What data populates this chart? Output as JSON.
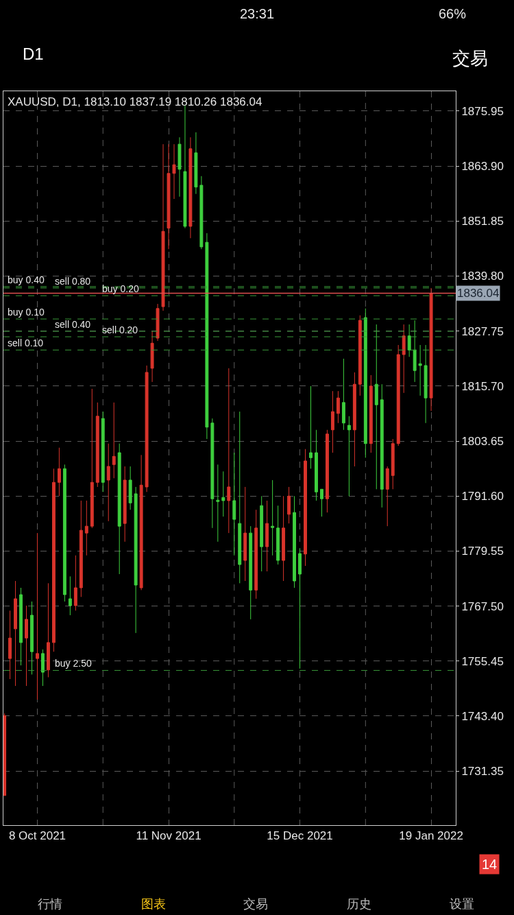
{
  "chart_data": {
    "type": "candlestick",
    "title": "XAUUSD, D1, 1813.10 1837.19 1810.26 1836.04",
    "categories": [
      null,
      null,
      null,
      null,
      null,
      null,
      "8 Oct 2021",
      null,
      null,
      null,
      null,
      null,
      null,
      null,
      null,
      null,
      null,
      null,
      null,
      null,
      null,
      null,
      null,
      null,
      null,
      null,
      null,
      null,
      null,
      null,
      "11 Nov 2021",
      null,
      null,
      null,
      null,
      null,
      null,
      null,
      null,
      null,
      null,
      null,
      null,
      null,
      null,
      null,
      null,
      null,
      null,
      null,
      null,
      null,
      null,
      null,
      "15 Dec 2021",
      null,
      null,
      null,
      null,
      null,
      null,
      null,
      null,
      null,
      null,
      null,
      null,
      null,
      null,
      null,
      null,
      null,
      null,
      null,
      null,
      null,
      null,
      null,
      "19 Jan 2022"
    ],
    "ohlc": [
      [
        1726.0,
        1744.0,
        1725.9,
        1743.5
      ],
      [
        1756.0,
        1766.5,
        1751.5,
        1760.5
      ],
      [
        1762.5,
        1773.0,
        1750.0,
        1769.1
      ],
      [
        1770.0,
        1771.5,
        1754.5,
        1759.5
      ],
      [
        1760.5,
        1767.6,
        1750.0,
        1764.6
      ],
      [
        1765.5,
        1768.5,
        1752.5,
        1757.5
      ],
      [
        1756.0,
        1783.5,
        1747.0,
        1757.1
      ],
      [
        1757.1,
        1758.0,
        1750.0,
        1753.0
      ],
      [
        1753.5,
        1772.5,
        1751.9,
        1759.5
      ],
      [
        1759.5,
        1797.6,
        1757.5,
        1794.6
      ],
      [
        1794.6,
        1802.2,
        1791.6,
        1797.6
      ],
      [
        1797.6,
        1798.5,
        1768.5,
        1770.0
      ],
      [
        1769.1,
        1774.0,
        1765.5,
        1767.6
      ],
      [
        1767.6,
        1778.6,
        1766.5,
        1771.5
      ],
      [
        1771.5,
        1790.6,
        1769.5,
        1784.1
      ],
      [
        1783.5,
        1790.6,
        1778.6,
        1785.0
      ],
      [
        1785.0,
        1815.1,
        1784.6,
        1794.6
      ],
      [
        1794.6,
        1812.1,
        1793.6,
        1809.1
      ],
      [
        1808.6,
        1810.1,
        1792.5,
        1794.6
      ],
      [
        1795.1,
        1803.1,
        1786.1,
        1798.1
      ],
      [
        1798.5,
        1812.1,
        1795.5,
        1800.3
      ],
      [
        1801.1,
        1803.1,
        1774.5,
        1785.0
      ],
      [
        1785.6,
        1798.1,
        1781.6,
        1795.1
      ],
      [
        1795.1,
        1798.1,
        1788.6,
        1790.1
      ],
      [
        1792.1,
        1793.6,
        1761.6,
        1772.1
      ],
      [
        1771.5,
        1800.6,
        1771.0,
        1794.0
      ],
      [
        1793.6,
        1820.2,
        1792.5,
        1818.7
      ],
      [
        1819.6,
        1827.7,
        1816.6,
        1825.1
      ],
      [
        1826.2,
        1833.7,
        1825.6,
        1832.7
      ],
      [
        1833.1,
        1868.7,
        1832.2,
        1849.6
      ],
      [
        1850.3,
        1868.7,
        1845.7,
        1862.3
      ],
      [
        1862.3,
        1868.7,
        1856.7,
        1864.2
      ],
      [
        1868.7,
        1870.2,
        1857.2,
        1863.2
      ],
      [
        1862.7,
        1877.3,
        1850.3,
        1850.7
      ],
      [
        1850.7,
        1870.2,
        1848.1,
        1867.7
      ],
      [
        1866.8,
        1871.3,
        1857.8,
        1859.3
      ],
      [
        1859.7,
        1861.7,
        1845.7,
        1846.2
      ],
      [
        1847.2,
        1849.2,
        1804.1,
        1806.7
      ],
      [
        1807.6,
        1808.6,
        1784.6,
        1791.0
      ],
      [
        1790.7,
        1798.5,
        1781.6,
        1790.4
      ],
      [
        1791.3,
        1797.0,
        1787.1,
        1790.6
      ],
      [
        1790.6,
        1819.6,
        1783.5,
        1793.6
      ],
      [
        1790.6,
        1801.1,
        1778.6,
        1786.5
      ],
      [
        1785.6,
        1810.1,
        1772.5,
        1776.6
      ],
      [
        1777.5,
        1793.6,
        1773.0,
        1783.5
      ],
      [
        1783.5,
        1785.0,
        1764.6,
        1771.0
      ],
      [
        1771.0,
        1788.6,
        1769.1,
        1784.6
      ],
      [
        1789.5,
        1791.6,
        1775.1,
        1780.5
      ],
      [
        1780.5,
        1790.6,
        1775.1,
        1785.6
      ],
      [
        1785.0,
        1795.1,
        1778.6,
        1784.7
      ],
      [
        1784.6,
        1789.5,
        1776.6,
        1777.5
      ],
      [
        1777.5,
        1791.6,
        1773.0,
        1784.6
      ],
      [
        1787.6,
        1793.6,
        1785.6,
        1791.6
      ],
      [
        1788.0,
        1791.6,
        1771.5,
        1773.0
      ],
      [
        1779.0,
        1780.1,
        1753.8,
        1774.5
      ],
      [
        1778.9,
        1801.9,
        1776.3,
        1799.3
      ],
      [
        1801.1,
        1815.7,
        1797.6,
        1800.0
      ],
      [
        1801.1,
        1806.1,
        1790.6,
        1792.5
      ],
      [
        1793.1,
        1793.1,
        1787.1,
        1791.0
      ],
      [
        1791.0,
        1806.1,
        1788.0,
        1805.2
      ],
      [
        1806.1,
        1814.6,
        1801.1,
        1810.1
      ],
      [
        1809.7,
        1814.6,
        1807.6,
        1813.1
      ],
      [
        1812.1,
        1821.7,
        1806.1,
        1807.6
      ],
      [
        1807.1,
        1809.1,
        1791.6,
        1806.1
      ],
      [
        1806.1,
        1818.7,
        1798.1,
        1816.1
      ],
      [
        1816.1,
        1831.2,
        1813.6,
        1830.1
      ],
      [
        1830.7,
        1832.7,
        1800.0,
        1803.1
      ],
      [
        1803.1,
        1818.1,
        1801.1,
        1815.7
      ],
      [
        1816.1,
        1829.2,
        1793.1,
        1811.6
      ],
      [
        1812.7,
        1816.1,
        1789.1,
        1793.1
      ],
      [
        1793.1,
        1798.1,
        1785.0,
        1797.6
      ],
      [
        1796.1,
        1804.1,
        1793.1,
        1803.1
      ],
      [
        1803.1,
        1824.7,
        1802.6,
        1822.6
      ],
      [
        1822.6,
        1829.2,
        1814.2,
        1826.7
      ],
      [
        1826.7,
        1829.2,
        1822.1,
        1823.6
      ],
      [
        1823.6,
        1830.1,
        1816.6,
        1819.1
      ],
      [
        1820.6,
        1824.7,
        1813.6,
        1820.2
      ],
      [
        1820.2,
        1824.7,
        1807.6,
        1813.1
      ],
      [
        1813.1,
        1837.19,
        1810.26,
        1836.04
      ]
    ],
    "colors": [
      "#d9342b",
      "#d9342b",
      "#d9342b",
      "#3ecf3e",
      "#d9342b",
      "#3ecf3e",
      "#d9342b",
      "#3ecf3e",
      "#d9342b",
      "#d9342b",
      "#d9342b",
      "#3ecf3e",
      "#3ecf3e",
      "#d9342b",
      "#d9342b",
      "#d9342b",
      "#d9342b",
      "#d9342b",
      "#3ecf3e",
      "#d9342b",
      "#d9342b",
      "#3ecf3e",
      "#d9342b",
      "#3ecf3e",
      "#3ecf3e",
      "#d9342b",
      "#d9342b",
      "#d9342b",
      "#d9342b",
      "#d9342b",
      "#d9342b",
      "#d9342b",
      "#3ecf3e",
      "#3ecf3e",
      "#d9342b",
      "#3ecf3e",
      "#3ecf3e",
      "#3ecf3e",
      "#3ecf3e",
      "#3ecf3e",
      "#3ecf3e",
      "#d9342b",
      "#3ecf3e",
      "#3ecf3e",
      "#d9342b",
      "#3ecf3e",
      "#d9342b",
      "#3ecf3e",
      "#d9342b",
      "#3ecf3e",
      "#3ecf3e",
      "#d9342b",
      "#d9342b",
      "#3ecf3e",
      "#3ecf3e",
      "#d9342b",
      "#3ecf3e",
      "#3ecf3e",
      "#3ecf3e",
      "#d9342b",
      "#d9342b",
      "#d9342b",
      "#3ecf3e",
      "#3ecf3e",
      "#d9342b",
      "#d9342b",
      "#3ecf3e",
      "#d9342b",
      "#3ecf3e",
      "#3ecf3e",
      "#d9342b",
      "#d9342b",
      "#d9342b",
      "#d9342b",
      "#3ecf3e",
      "#3ecf3e",
      "#3ecf3e",
      "#3ecf3e",
      "#d9342b"
    ],
    "ylim": [
      1719.5,
      1880.3
    ],
    "yticks": [
      1731.35,
      {
        "value": 1743.4,
        "label": "1743.40"
      },
      1755.45,
      {
        "value": 1767.5,
        "label": "1767.50"
      },
      1779.55,
      {
        "value": 1791.6,
        "label": "1791.60"
      },
      1803.65,
      {
        "value": 1815.7,
        "label": "1815.70"
      },
      1827.75,
      {
        "value": 1839.8,
        "label": "1839.80"
      },
      1851.85,
      {
        "value": 1863.9,
        "label": "1863.90"
      },
      1875.95
    ],
    "grid": true,
    "ref_lines": [
      {
        "axis": "y",
        "value": 1837.5,
        "label": "buy 0.40",
        "color": "#3a9a3a",
        "line_style": "dashed"
      },
      {
        "axis": "y",
        "value": 1837.2,
        "label": "sell 0.80",
        "color": "#3a9a3a",
        "line_style": "dashed"
      },
      {
        "axis": "y",
        "value": 1835.5,
        "label": "buy 0.20",
        "color": "#3a9a3a",
        "line_style": "dashed"
      },
      {
        "axis": "y",
        "value": 1830.4,
        "label": "buy 0.10",
        "color": "#3a9a3a",
        "line_style": "dashed"
      },
      {
        "axis": "y",
        "value": 1827.7,
        "label": "sell 0.40",
        "color": "#3a9a3a",
        "line_style": "dashed"
      },
      {
        "axis": "y",
        "value": 1826.5,
        "label": "sell 0.20",
        "color": "#3a9a3a",
        "line_style": "dashed"
      },
      {
        "axis": "y",
        "value": 1823.6,
        "label": "sell 0.10",
        "color": "#3a9a3a",
        "line_style": "dashed"
      },
      {
        "axis": "y",
        "value": 1753.4,
        "label": "buy 2.50",
        "color": "#3a9a3a",
        "line_style": "dashed"
      },
      {
        "axis": "y",
        "value": 1836.04,
        "label": "1836.04",
        "color": "#e05050",
        "line_style": "solid"
      }
    ],
    "annotations": [
      "23:31",
      "66%",
      "D1",
      "交易",
      "行情",
      "图表",
      "交易",
      "历史",
      "设置",
      "14"
    ]
  }
}
